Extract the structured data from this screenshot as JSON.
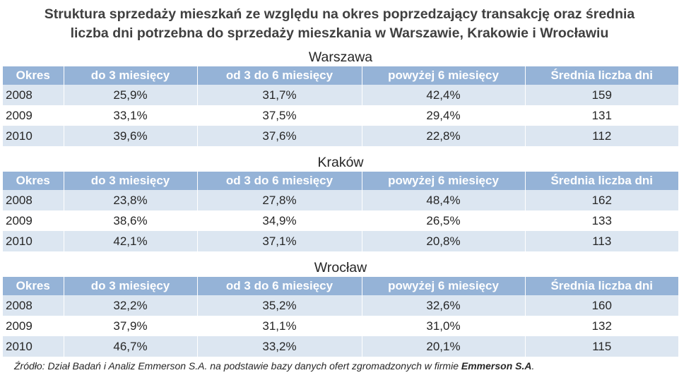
{
  "title_lines": [
    "Struktura sprzedaży mieszkań ze względu na okres poprzedzający transakcję oraz średnia",
    "liczba dni potrzebna do sprzedaży mieszkania w Warszawie, Krakowie i Wrocławiu"
  ],
  "chart_data": {
    "type": "table",
    "columns": [
      "Okres",
      "do 3 miesięcy",
      "od 3 do 6 miesięcy",
      "powyżej 6 miesięcy",
      "Średnia liczba dni"
    ],
    "tables": [
      {
        "city": "Warszawa",
        "rows": [
          [
            "2008",
            "25,9%",
            "31,7%",
            "42,4%",
            "159"
          ],
          [
            "2009",
            "33,1%",
            "37,5%",
            "29,4%",
            "131"
          ],
          [
            "2010",
            "39,6%",
            "37,6%",
            "22,8%",
            "112"
          ]
        ]
      },
      {
        "city": "Kraków",
        "rows": [
          [
            "2008",
            "23,8%",
            "27,8%",
            "48,4%",
            "162"
          ],
          [
            "2009",
            "38,6%",
            "34,9%",
            "26,5%",
            "133"
          ],
          [
            "2010",
            "42,1%",
            "37,1%",
            "20,8%",
            "113"
          ]
        ]
      },
      {
        "city": "Wrocław",
        "rows": [
          [
            "2008",
            "32,2%",
            "35,2%",
            "32,6%",
            "160"
          ],
          [
            "2009",
            "37,9%",
            "31,1%",
            "31,0%",
            "132"
          ],
          [
            "2010",
            "46,7%",
            "33,2%",
            "20,1%",
            "115"
          ]
        ]
      }
    ]
  },
  "source": {
    "text": "Źródło: Dział Badań i Analiz Emmerson S.A. na podstawie bazy danych ofert zgromadzonych w firmie ",
    "bold": "Emmerson S.A",
    "end": "."
  },
  "colors": {
    "header_bg": "#95b3d7",
    "header_text": "#ffffff",
    "row_shade": "#dce6f1",
    "title_text": "#404040"
  }
}
